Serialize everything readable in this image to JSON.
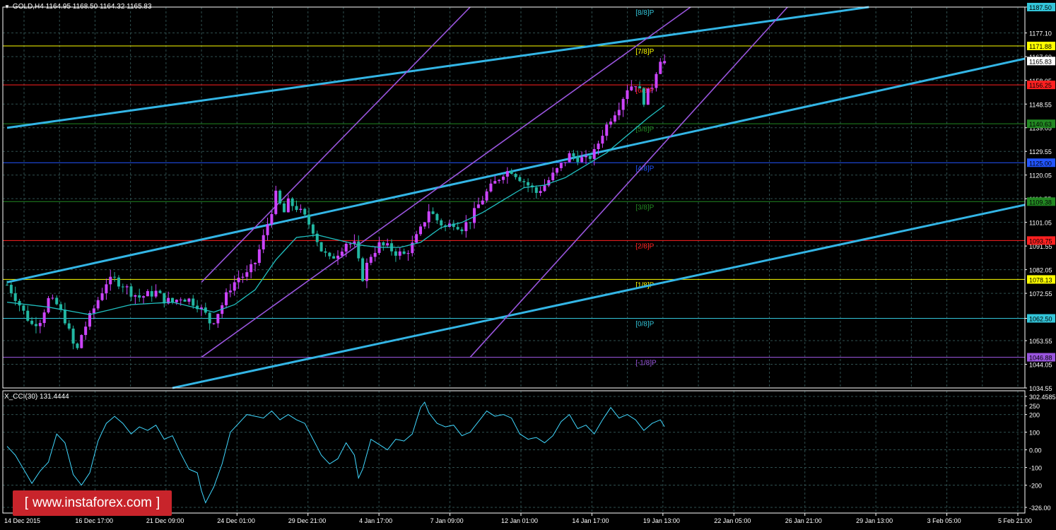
{
  "chart_title": "GOLD,H4  1164.95 1168.50 1164.32 1165.83",
  "sub_title": "X_CCI(30) 131.4444",
  "watermark": {
    "bracket_left": "[",
    "text": "www.instaforex.com",
    "bracket_right": "]"
  },
  "colors": {
    "background": "#000000",
    "grid": "#2f4f4f",
    "axis": "#ffffff",
    "bull": "#cc44ff",
    "bear": "#22b7a2",
    "ma": "#20c0c0",
    "trend": "#33b5e5",
    "channel": "#9955dd"
  },
  "chart_data": [
    {
      "type": "candlestick",
      "symbol": "GOLD",
      "timeframe": "H4",
      "ohlc_header": {
        "open": 1164.95,
        "high": 1168.5,
        "low": 1164.32,
        "close": 1165.83
      },
      "ylim": [
        1034.55,
        1187.5
      ],
      "y_ticks": [
        1187.5,
        1177.1,
        1167.6,
        1158.05,
        1148.55,
        1139.05,
        1129.55,
        1120.05,
        1110.55,
        1101.05,
        1091.55,
        1082.05,
        1072.55,
        1062.5,
        1053.55,
        1044.05,
        1034.55
      ],
      "x_tick_labels": [
        "14 Dec 2015",
        "16 Dec 17:00",
        "21 Dec 09:00",
        "24 Dec 01:00",
        "29 Dec 21:00",
        "4 Jan 17:00",
        "7 Jan 09:00",
        "12 Jan 01:00",
        "14 Jan 17:00",
        "19 Jan 13:00",
        "22 Jan 05:00",
        "26 Jan 21:00",
        "29 Jan 13:00",
        "3 Feb 05:00",
        "5 Feb 21:00"
      ],
      "murrey_levels": [
        {
          "label": "[8/8]P",
          "price": 1187.5,
          "color": "#33c5d9",
          "tag": "1187.50",
          "tag_bg": "#33c5d9"
        },
        {
          "label": "[7/8]P",
          "price": 1171.88,
          "color": "#ffff00",
          "tag": "1171.88",
          "tag_bg": "#ffff00"
        },
        {
          "label": "[6/8]P",
          "price": 1156.25,
          "color": "#ff2020",
          "tag": "1156.25",
          "tag_bg": "#ff2020"
        },
        {
          "label": "[5/8]P",
          "price": 1140.63,
          "color": "#228822",
          "tag": "1140.63",
          "tag_bg": "#228822"
        },
        {
          "label": "[4/8]P",
          "price": 1125.0,
          "color": "#2255ff",
          "tag": "1125.00",
          "tag_bg": "#2255ff"
        },
        {
          "label": "[3/8]P",
          "price": 1109.38,
          "color": "#228822",
          "tag": "1109.38",
          "tag_bg": "#228822"
        },
        {
          "label": "[2/8]P",
          "price": 1093.75,
          "color": "#ff2020",
          "tag": "1093.75",
          "tag_bg": "#ff2020"
        },
        {
          "label": "[1/8]P",
          "price": 1078.13,
          "color": "#ffff00",
          "tag": "1078.13",
          "tag_bg": "#ffff00"
        },
        {
          "label": "[0/8]P",
          "price": 1062.5,
          "color": "#33c5d9",
          "tag": "1062.50",
          "tag_bg": "#33c5d9"
        },
        {
          "label": "[-1/8]P",
          "price": 1046.88,
          "color": "#9955dd",
          "tag": "1046.88",
          "tag_bg": "#9955dd"
        }
      ],
      "current_price": 1165.83,
      "close_path": [
        [
          0,
          1076
        ],
        [
          2,
          1071
        ],
        [
          4,
          1065
        ],
        [
          6,
          1060
        ],
        [
          8,
          1062
        ],
        [
          10,
          1070
        ],
        [
          12,
          1068
        ],
        [
          14,
          1062
        ],
        [
          16,
          1052
        ],
        [
          17,
          1050
        ],
        [
          18,
          1056
        ],
        [
          20,
          1063
        ],
        [
          22,
          1070
        ],
        [
          24,
          1077
        ],
        [
          26,
          1078
        ],
        [
          28,
          1076
        ],
        [
          30,
          1073
        ],
        [
          32,
          1071
        ],
        [
          34,
          1072
        ],
        [
          36,
          1073
        ],
        [
          38,
          1070
        ],
        [
          40,
          1069
        ],
        [
          42,
          1071
        ],
        [
          44,
          1070
        ],
        [
          46,
          1068
        ],
        [
          48,
          1064
        ],
        [
          49,
          1061
        ],
        [
          50,
          1062
        ],
        [
          52,
          1068
        ],
        [
          54,
          1075
        ],
        [
          56,
          1079
        ],
        [
          58,
          1080
        ],
        [
          60,
          1085
        ],
        [
          62,
          1095
        ],
        [
          64,
          1106
        ],
        [
          65,
          1112
        ],
        [
          66,
          1108
        ],
        [
          67,
          1105
        ],
        [
          68,
          1109
        ],
        [
          70,
          1107
        ],
        [
          72,
          1103
        ],
        [
          74,
          1098
        ],
        [
          76,
          1090
        ],
        [
          78,
          1086
        ],
        [
          80,
          1089
        ],
        [
          82,
          1093
        ],
        [
          84,
          1092
        ],
        [
          85,
          1085
        ],
        [
          86,
          1079
        ],
        [
          87,
          1084
        ],
        [
          88,
          1088
        ],
        [
          90,
          1092
        ],
        [
          92,
          1091
        ],
        [
          94,
          1089
        ],
        [
          96,
          1088
        ],
        [
          98,
          1092
        ],
        [
          100,
          1098
        ],
        [
          102,
          1106
        ],
        [
          104,
          1102
        ],
        [
          106,
          1099
        ],
        [
          108,
          1101
        ],
        [
          110,
          1099
        ],
        [
          112,
          1102
        ],
        [
          114,
          1108
        ],
        [
          116,
          1113
        ],
        [
          118,
          1117
        ],
        [
          120,
          1121
        ],
        [
          122,
          1122
        ],
        [
          124,
          1119
        ],
        [
          126,
          1116
        ],
        [
          128,
          1113
        ],
        [
          130,
          1116
        ],
        [
          132,
          1120
        ],
        [
          134,
          1124
        ],
        [
          136,
          1128
        ],
        [
          138,
          1127
        ],
        [
          140,
          1126
        ],
        [
          142,
          1129
        ],
        [
          144,
          1137
        ],
        [
          146,
          1143
        ],
        [
          148,
          1148
        ],
        [
          150,
          1155
        ],
        [
          152,
          1157
        ],
        [
          154,
          1150
        ],
        [
          156,
          1156
        ],
        [
          157,
          1162
        ],
        [
          158,
          1167
        ],
        [
          159,
          1165.83
        ]
      ],
      "moving_average": [
        [
          0,
          1069
        ],
        [
          10,
          1067
        ],
        [
          20,
          1064
        ],
        [
          30,
          1068
        ],
        [
          40,
          1069
        ],
        [
          50,
          1065
        ],
        [
          55,
          1068
        ],
        [
          60,
          1074
        ],
        [
          65,
          1086
        ],
        [
          70,
          1095
        ],
        [
          75,
          1096
        ],
        [
          80,
          1094
        ],
        [
          85,
          1092
        ],
        [
          90,
          1091
        ],
        [
          95,
          1091
        ],
        [
          100,
          1093
        ],
        [
          105,
          1099
        ],
        [
          110,
          1101
        ],
        [
          115,
          1105
        ],
        [
          120,
          1110
        ],
        [
          125,
          1115
        ],
        [
          130,
          1116
        ],
        [
          135,
          1119
        ],
        [
          140,
          1124
        ],
        [
          145,
          1129
        ],
        [
          150,
          1136
        ],
        [
          155,
          1143
        ],
        [
          159,
          1148
        ]
      ],
      "trend_lines": [
        {
          "name": "trend-line-upper",
          "from": [
            0,
            1139
          ],
          "to": [
            159,
            1176
          ]
        },
        {
          "name": "trend-line-middle",
          "from": [
            0,
            1077
          ],
          "to": [
            159,
            1135
          ]
        },
        {
          "name": "trend-line-lower",
          "from": [
            40,
            1034.55
          ],
          "to": [
            159,
            1077
          ]
        }
      ],
      "channel_lines": [
        {
          "name": "channel-line-upper",
          "from": [
            47,
            1077
          ],
          "to": [
            112,
            1187.5
          ]
        },
        {
          "name": "channel-line-middle",
          "from": [
            47,
            1046.88
          ],
          "to": [
            159,
            1180
          ]
        },
        {
          "name": "channel-line-lower",
          "from": [
            112,
            1046.88
          ],
          "to": [
            159,
            1133
          ]
        }
      ]
    },
    {
      "type": "line",
      "indicator": "X_CCI(30)",
      "last_value": 131.4444,
      "ylim": [
        -326.0,
        302.4585
      ],
      "y_ticks": [
        302.4585,
        250,
        200,
        100,
        0.0,
        -100,
        -200,
        -326.0
      ],
      "tick_labels": [
        "302.4585",
        "250",
        "200",
        "100",
        "0.00",
        "-100",
        "-200",
        "-326.00"
      ],
      "values": [
        [
          0,
          20
        ],
        [
          2,
          -30
        ],
        [
          4,
          -110
        ],
        [
          6,
          -190
        ],
        [
          8,
          -120
        ],
        [
          10,
          -70
        ],
        [
          12,
          90
        ],
        [
          14,
          40
        ],
        [
          16,
          -140
        ],
        [
          18,
          -200
        ],
        [
          20,
          -130
        ],
        [
          22,
          50
        ],
        [
          24,
          150
        ],
        [
          26,
          190
        ],
        [
          28,
          150
        ],
        [
          30,
          90
        ],
        [
          32,
          130
        ],
        [
          34,
          110
        ],
        [
          36,
          140
        ],
        [
          38,
          60
        ],
        [
          40,
          80
        ],
        [
          42,
          -20
        ],
        [
          44,
          -110
        ],
        [
          46,
          -130
        ],
        [
          47,
          -230
        ],
        [
          48,
          -300
        ],
        [
          50,
          -210
        ],
        [
          52,
          -80
        ],
        [
          54,
          100
        ],
        [
          56,
          150
        ],
        [
          58,
          200
        ],
        [
          60,
          190
        ],
        [
          62,
          180
        ],
        [
          64,
          220
        ],
        [
          66,
          170
        ],
        [
          68,
          200
        ],
        [
          70,
          170
        ],
        [
          72,
          150
        ],
        [
          74,
          60
        ],
        [
          76,
          -30
        ],
        [
          78,
          -80
        ],
        [
          80,
          -50
        ],
        [
          82,
          40
        ],
        [
          84,
          -30
        ],
        [
          85,
          -160
        ],
        [
          86,
          -110
        ],
        [
          88,
          60
        ],
        [
          90,
          30
        ],
        [
          92,
          0
        ],
        [
          94,
          60
        ],
        [
          96,
          50
        ],
        [
          98,
          90
        ],
        [
          100,
          240
        ],
        [
          101,
          270
        ],
        [
          102,
          210
        ],
        [
          104,
          150
        ],
        [
          106,
          130
        ],
        [
          108,
          140
        ],
        [
          110,
          80
        ],
        [
          112,
          100
        ],
        [
          114,
          160
        ],
        [
          116,
          220
        ],
        [
          118,
          190
        ],
        [
          120,
          200
        ],
        [
          122,
          180
        ],
        [
          124,
          90
        ],
        [
          126,
          60
        ],
        [
          128,
          70
        ],
        [
          130,
          40
        ],
        [
          132,
          80
        ],
        [
          134,
          160
        ],
        [
          136,
          200
        ],
        [
          138,
          120
        ],
        [
          140,
          140
        ],
        [
          142,
          90
        ],
        [
          144,
          170
        ],
        [
          146,
          240
        ],
        [
          148,
          180
        ],
        [
          150,
          200
        ],
        [
          152,
          170
        ],
        [
          154,
          110
        ],
        [
          156,
          150
        ],
        [
          158,
          170
        ],
        [
          159,
          131.4444
        ]
      ]
    }
  ]
}
